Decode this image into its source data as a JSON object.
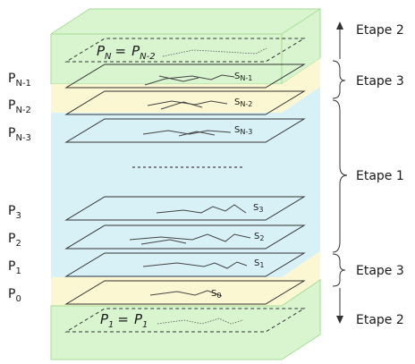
{
  "planes": [
    {
      "id": "p0",
      "base": "P",
      "sub": "0"
    },
    {
      "id": "p1",
      "base": "P",
      "sub": "1"
    },
    {
      "id": "p2",
      "base": "P",
      "sub": "2"
    },
    {
      "id": "p3",
      "base": "P",
      "sub": "3"
    },
    {
      "id": "pn3",
      "base": "P",
      "sub": "N-3"
    },
    {
      "id": "pn2",
      "base": "P",
      "sub": "N-2"
    },
    {
      "id": "pn1",
      "base": "P",
      "sub": "N-1"
    }
  ],
  "paths": [
    {
      "id": "s0",
      "base": "S",
      "sub": "0"
    },
    {
      "id": "s1",
      "base": "S",
      "sub": "1"
    },
    {
      "id": "s2",
      "base": "S",
      "sub": "2"
    },
    {
      "id": "s3",
      "base": "S",
      "sub": "3"
    },
    {
      "id": "sn3",
      "base": "S",
      "sub": "N-3"
    },
    {
      "id": "sn2",
      "base": "S",
      "sub": "N-2"
    },
    {
      "id": "sn1",
      "base": "S",
      "sub": "N-1"
    }
  ],
  "equalities": {
    "top": {
      "left_base": "P",
      "left_sub": "N",
      "op": "=",
      "right_base": "P",
      "right_sub": "N-2"
    },
    "bottom": {
      "left_base": "P",
      "left_sub": "1",
      "op": "=",
      "right_base": "P",
      "right_sub": "1"
    }
  },
  "steps": {
    "etape2_top": "Etape 2",
    "etape3_top": "Etape 3",
    "etape1": "Etape 1",
    "etape3_bottom": "Etape 3",
    "etape2_bottom": "Etape 2"
  },
  "colors": {
    "green_fill": "#d9f5d0",
    "green_stroke": "#a6dd95",
    "yellow_fill": "#fbf7d2",
    "blue_fill": "#d8f1f7",
    "line": "#333333"
  }
}
